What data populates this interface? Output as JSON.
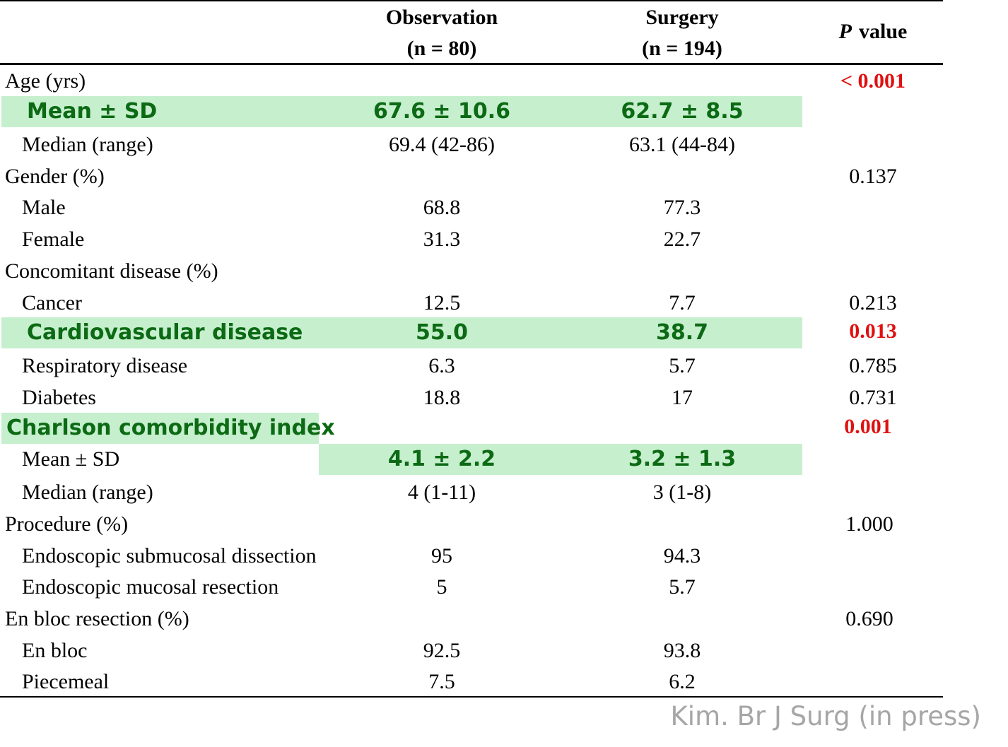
{
  "header": {
    "observation": "Observation",
    "observation_n": "(n = 80)",
    "surgery": "Surgery",
    "surgery_n": "(n = 194)",
    "p_label": "P",
    "p_suffix": "value"
  },
  "rows": [
    {
      "label": "Age (yrs)",
      "obs": "",
      "surg": "",
      "p": "< 0.001"
    },
    {
      "label": "Mean ± SD",
      "obs": "67.6 ± 10.6",
      "surg": "62.7 ± 8.5",
      "p": ""
    },
    {
      "label": "Median (range)",
      "obs": "69.4 (42-86)",
      "surg": "63.1 (44-84)",
      "p": ""
    },
    {
      "label": "Gender (%)",
      "obs": "",
      "surg": "",
      "p": "0.137"
    },
    {
      "label": "Male",
      "obs": "68.8",
      "surg": "77.3",
      "p": ""
    },
    {
      "label": "Female",
      "obs": "31.3",
      "surg": "22.7",
      "p": ""
    },
    {
      "label": "Concomitant disease (%)",
      "obs": "",
      "surg": "",
      "p": ""
    },
    {
      "label": "Cancer",
      "obs": "12.5",
      "surg": "7.7",
      "p": "0.213"
    },
    {
      "label": "Cardiovascular disease",
      "obs": "55.0",
      "surg": "38.7",
      "p": "0.013"
    },
    {
      "label": "Respiratory disease",
      "obs": "6.3",
      "surg": "5.7",
      "p": "0.785"
    },
    {
      "label": "Diabetes",
      "obs": "18.8",
      "surg": "17",
      "p": "0.731"
    },
    {
      "label": "Charlson comorbidity index",
      "obs": "",
      "surg": "",
      "p": "0.001"
    },
    {
      "label": "Mean ± SD",
      "obs": "4.1 ± 2.2",
      "surg": "3.2 ± 1.3",
      "p": ""
    },
    {
      "label": "Median (range)",
      "obs": "4 (1-11)",
      "surg": "3 (1-8)",
      "p": ""
    },
    {
      "label": "Procedure (%)",
      "obs": "",
      "surg": "",
      "p": "1.000"
    },
    {
      "label": "Endoscopic submucosal dissection",
      "obs": "95",
      "surg": "94.3",
      "p": ""
    },
    {
      "label": "Endoscopic mucosal resection",
      "obs": "5",
      "surg": "5.7",
      "p": ""
    },
    {
      "label": "En bloc resection (%)",
      "obs": "",
      "surg": "",
      "p": "0.690"
    },
    {
      "label": "En bloc",
      "obs": "92.5",
      "surg": "93.8",
      "p": ""
    },
    {
      "label": "Piecemeal",
      "obs": "7.5",
      "surg": "6.2",
      "p": ""
    }
  ],
  "highlight_color": "#c6efce",
  "highlight_text_color": "#0c6a14",
  "significant_p_color": "#e01010",
  "credit": "Kim. Br J Surg (in press)"
}
